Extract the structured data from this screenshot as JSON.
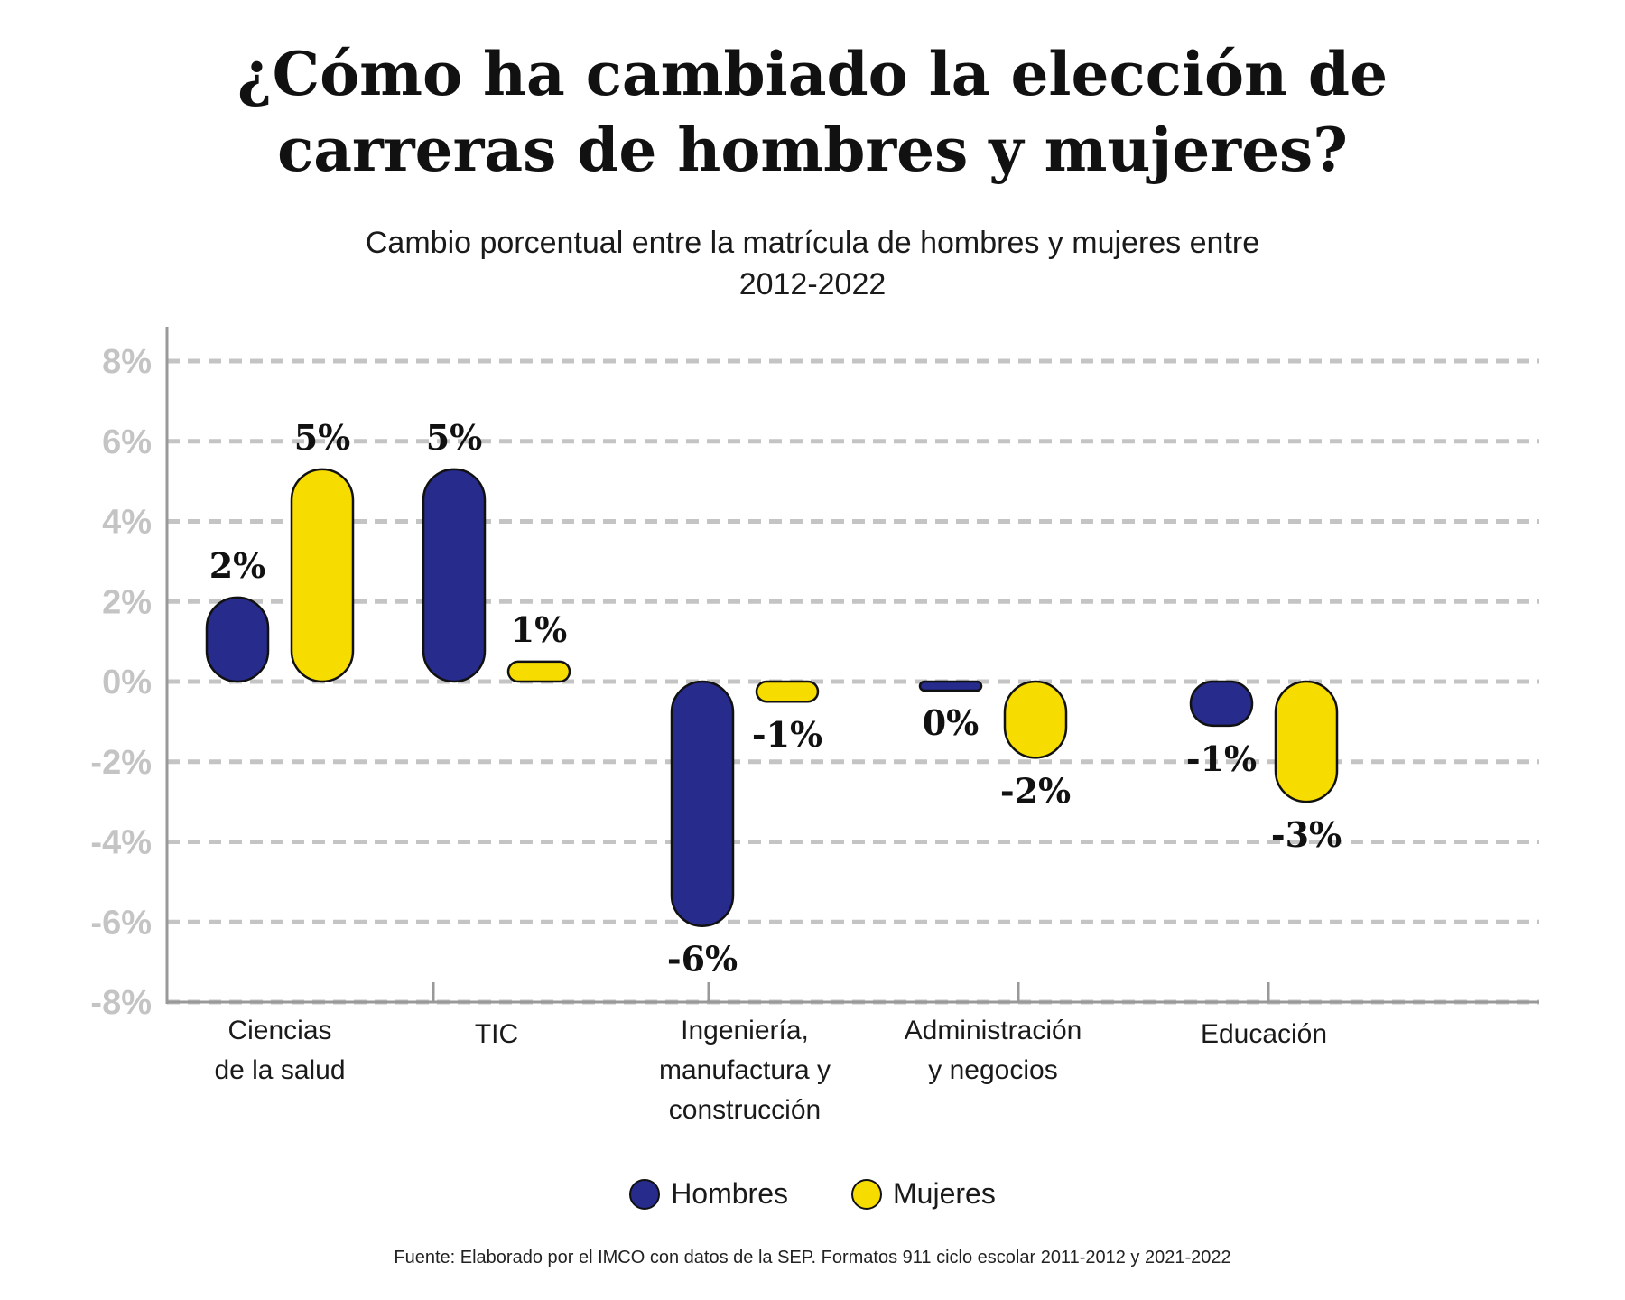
{
  "header": {
    "title_line1": "¿Cómo ha cambiado la elección de",
    "title_line2": "carreras de hombres y mujeres?",
    "subtitle_line1": "Cambio porcentual entre la matrícula de hombres y mujeres entre",
    "subtitle_line2": "2012-2022"
  },
  "legend": {
    "hombres": "Hombres",
    "mujeres": "Mujeres"
  },
  "source": "Fuente: Elaborado por el IMCO con datos de la SEP. Formatos 911 ciclo escolar 2011-2012 y 2021-2022",
  "colors": {
    "hombres": "#262b8c",
    "mujeres": "#f7dc00",
    "grid": "#c4c4c4",
    "axis": "#999999"
  },
  "chart_data": {
    "type": "bar",
    "title": "¿Cómo ha cambiado la elección de carreras de hombres y mujeres?",
    "subtitle": "Cambio porcentual entre la matrícula de hombres y mujeres entre 2012-2022",
    "categories": [
      [
        "Ciencias",
        "de la salud"
      ],
      [
        "TIC"
      ],
      [
        "Ingeniería,",
        "manufactura y",
        "construcción"
      ],
      [
        "Administración",
        "y negocios"
      ],
      [
        "Educación"
      ]
    ],
    "series": [
      {
        "name": "Hombres",
        "values": [
          2.1,
          5.3,
          -6.1,
          -0.2,
          -1.1
        ],
        "labels": [
          "2%",
          "5%",
          "-6%",
          "0%",
          "-1%"
        ]
      },
      {
        "name": "Mujeres",
        "values": [
          5.3,
          0.5,
          -0.5,
          -1.9,
          -3.0
        ],
        "labels": [
          "5%",
          "1%",
          "-1%",
          "-2%",
          "-3%"
        ]
      }
    ],
    "yticks": [
      "8%",
      "6%",
      "4%",
      "2%",
      "0%",
      "-2%",
      "-4%",
      "-6%",
      "-8%"
    ],
    "ytick_values": [
      8,
      6,
      4,
      2,
      0,
      -2,
      -4,
      -6,
      -8
    ],
    "ylim": [
      -8,
      8
    ],
    "grid": true,
    "legend_position": "bottom-center"
  }
}
